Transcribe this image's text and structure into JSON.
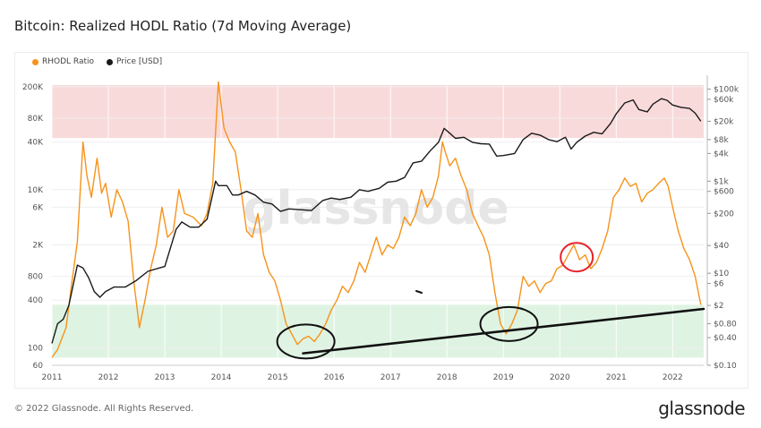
{
  "title": "Bitcoin: Realized HODL Ratio (7d Moving Average)",
  "footer": "© 2022 Glassnode. All Rights Reserved.",
  "brand": "glassnode",
  "watermark": "glassnode",
  "colors": {
    "rhodl": "#f7931a",
    "price": "#1a1a1a",
    "upper_band": "#f9dada",
    "lower_band": "#dff3e3",
    "annotation": "#111111",
    "circle_red": "#e8222a"
  },
  "chart_data": {
    "type": "line",
    "legend": [
      "RHODL Ratio",
      "Price [USD]"
    ],
    "legend_position": "top-left",
    "x_ticks": [
      "2011",
      "2012",
      "2013",
      "2014",
      "2015",
      "2016",
      "2017",
      "2018",
      "2019",
      "2020",
      "2021",
      "2022"
    ],
    "x_range": [
      2011.0,
      2022.55
    ],
    "left_axis": {
      "scale": "log",
      "range": [
        60,
        280000
      ],
      "ticks": [
        "200K",
        "80K",
        "40K",
        "10K",
        "6K",
        "2K",
        "800",
        "400",
        "100",
        "60"
      ],
      "tick_values": [
        200000,
        80000,
        40000,
        10000,
        6000,
        2000,
        800,
        400,
        100,
        60
      ]
    },
    "right_axis": {
      "scale": "log",
      "range": [
        0.1,
        200000
      ],
      "ticks": [
        "$100k",
        "$60k",
        "$20k",
        "$8k",
        "$4k",
        "$1k",
        "$600",
        "$200",
        "$40",
        "$10",
        "$6",
        "$2",
        "$0.80",
        "$0.40",
        "$0.10"
      ],
      "tick_values": [
        100000,
        60000,
        20000,
        8000,
        4000,
        1000,
        600,
        200,
        40,
        10,
        6,
        2,
        0.8,
        0.4,
        0.1
      ]
    },
    "bands": [
      {
        "axis": "left",
        "from": 45000,
        "to": 210000
      },
      {
        "axis": "left",
        "from": 75,
        "to": 350
      }
    ],
    "series": [
      {
        "name": "RHODL Ratio",
        "axis": "left",
        "points": [
          [
            2011.0,
            75
          ],
          [
            2011.1,
            95
          ],
          [
            2011.25,
            180
          ],
          [
            2011.35,
            650
          ],
          [
            2011.45,
            2200
          ],
          [
            2011.55,
            40000
          ],
          [
            2011.62,
            15000
          ],
          [
            2011.7,
            8000
          ],
          [
            2011.8,
            25000
          ],
          [
            2011.88,
            9000
          ],
          [
            2011.95,
            12000
          ],
          [
            2012.05,
            4500
          ],
          [
            2012.15,
            10000
          ],
          [
            2012.25,
            7000
          ],
          [
            2012.35,
            4000
          ],
          [
            2012.45,
            700
          ],
          [
            2012.55,
            180
          ],
          [
            2012.65,
            400
          ],
          [
            2012.75,
            1000
          ],
          [
            2012.85,
            2000
          ],
          [
            2012.95,
            6000
          ],
          [
            2013.05,
            2500
          ],
          [
            2013.15,
            3000
          ],
          [
            2013.25,
            10000
          ],
          [
            2013.35,
            5000
          ],
          [
            2013.5,
            4500
          ],
          [
            2013.65,
            3500
          ],
          [
            2013.75,
            5000
          ],
          [
            2013.85,
            12000
          ],
          [
            2013.95,
            230000
          ],
          [
            2014.05,
            60000
          ],
          [
            2014.15,
            40000
          ],
          [
            2014.25,
            30000
          ],
          [
            2014.35,
            10000
          ],
          [
            2014.45,
            3000
          ],
          [
            2014.55,
            2500
          ],
          [
            2014.65,
            5000
          ],
          [
            2014.75,
            1500
          ],
          [
            2014.85,
            900
          ],
          [
            2014.95,
            700
          ],
          [
            2015.05,
            400
          ],
          [
            2015.15,
            200
          ],
          [
            2015.25,
            150
          ],
          [
            2015.35,
            110
          ],
          [
            2015.45,
            130
          ],
          [
            2015.55,
            140
          ],
          [
            2015.65,
            120
          ],
          [
            2015.75,
            150
          ],
          [
            2015.85,
            200
          ],
          [
            2015.95,
            300
          ],
          [
            2016.05,
            400
          ],
          [
            2016.15,
            600
          ],
          [
            2016.25,
            500
          ],
          [
            2016.35,
            700
          ],
          [
            2016.45,
            1200
          ],
          [
            2016.55,
            900
          ],
          [
            2016.65,
            1500
          ],
          [
            2016.75,
            2500
          ],
          [
            2016.85,
            1500
          ],
          [
            2016.95,
            2000
          ],
          [
            2017.05,
            1800
          ],
          [
            2017.15,
            2500
          ],
          [
            2017.25,
            4500
          ],
          [
            2017.35,
            3500
          ],
          [
            2017.45,
            5000
          ],
          [
            2017.55,
            10000
          ],
          [
            2017.65,
            6000
          ],
          [
            2017.75,
            8000
          ],
          [
            2017.85,
            15000
          ],
          [
            2017.92,
            40000
          ],
          [
            2017.97,
            30000
          ],
          [
            2018.05,
            20000
          ],
          [
            2018.15,
            25000
          ],
          [
            2018.25,
            15000
          ],
          [
            2018.35,
            10000
          ],
          [
            2018.45,
            5000
          ],
          [
            2018.55,
            3500
          ],
          [
            2018.65,
            2500
          ],
          [
            2018.75,
            1500
          ],
          [
            2018.85,
            500
          ],
          [
            2018.95,
            200
          ],
          [
            2019.05,
            150
          ],
          [
            2019.15,
            200
          ],
          [
            2019.25,
            300
          ],
          [
            2019.35,
            800
          ],
          [
            2019.45,
            600
          ],
          [
            2019.55,
            700
          ],
          [
            2019.65,
            500
          ],
          [
            2019.75,
            650
          ],
          [
            2019.85,
            700
          ],
          [
            2019.95,
            1000
          ],
          [
            2020.05,
            1100
          ],
          [
            2020.15,
            1500
          ],
          [
            2020.25,
            2000
          ],
          [
            2020.35,
            1300
          ],
          [
            2020.45,
            1500
          ],
          [
            2020.55,
            1000
          ],
          [
            2020.65,
            1200
          ],
          [
            2020.75,
            1800
          ],
          [
            2020.85,
            3000
          ],
          [
            2020.95,
            8000
          ],
          [
            2021.05,
            10000
          ],
          [
            2021.15,
            14000
          ],
          [
            2021.25,
            11000
          ],
          [
            2021.35,
            12000
          ],
          [
            2021.45,
            7000
          ],
          [
            2021.55,
            9000
          ],
          [
            2021.65,
            10000
          ],
          [
            2021.75,
            12000
          ],
          [
            2021.85,
            14000
          ],
          [
            2021.92,
            11000
          ],
          [
            2022.0,
            6000
          ],
          [
            2022.1,
            3000
          ],
          [
            2022.2,
            1800
          ],
          [
            2022.3,
            1300
          ],
          [
            2022.4,
            800
          ],
          [
            2022.5,
            350
          ]
        ]
      },
      {
        "name": "Price [USD]",
        "axis": "right",
        "points": [
          [
            2011.0,
            0.3
          ],
          [
            2011.1,
            0.8
          ],
          [
            2011.2,
            1
          ],
          [
            2011.3,
            2
          ],
          [
            2011.45,
            15
          ],
          [
            2011.55,
            13
          ],
          [
            2011.65,
            8
          ],
          [
            2011.75,
            4
          ],
          [
            2011.85,
            3
          ],
          [
            2011.95,
            4
          ],
          [
            2012.1,
            5
          ],
          [
            2012.3,
            5
          ],
          [
            2012.5,
            7
          ],
          [
            2012.7,
            11
          ],
          [
            2012.9,
            13
          ],
          [
            2013.0,
            14
          ],
          [
            2013.2,
            90
          ],
          [
            2013.3,
            130
          ],
          [
            2013.45,
            100
          ],
          [
            2013.6,
            100
          ],
          [
            2013.75,
            150
          ],
          [
            2013.9,
            1000
          ],
          [
            2013.95,
            800
          ],
          [
            2014.1,
            800
          ],
          [
            2014.2,
            500
          ],
          [
            2014.3,
            500
          ],
          [
            2014.45,
            600
          ],
          [
            2014.6,
            500
          ],
          [
            2014.75,
            350
          ],
          [
            2014.9,
            320
          ],
          [
            2015.05,
            220
          ],
          [
            2015.2,
            250
          ],
          [
            2015.4,
            240
          ],
          [
            2015.6,
            230
          ],
          [
            2015.8,
            380
          ],
          [
            2015.95,
            430
          ],
          [
            2016.1,
            400
          ],
          [
            2016.3,
            450
          ],
          [
            2016.45,
            650
          ],
          [
            2016.6,
            600
          ],
          [
            2016.8,
            700
          ],
          [
            2016.95,
            950
          ],
          [
            2017.1,
            1000
          ],
          [
            2017.25,
            1200
          ],
          [
            2017.4,
            2500
          ],
          [
            2017.55,
            2700
          ],
          [
            2017.7,
            4500
          ],
          [
            2017.85,
            7000
          ],
          [
            2017.95,
            14000
          ],
          [
            2018.05,
            11000
          ],
          [
            2018.15,
            8500
          ],
          [
            2018.3,
            9000
          ],
          [
            2018.45,
            7000
          ],
          [
            2018.6,
            6500
          ],
          [
            2018.75,
            6400
          ],
          [
            2018.88,
            3500
          ],
          [
            2019.0,
            3600
          ],
          [
            2019.2,
            4000
          ],
          [
            2019.35,
            8000
          ],
          [
            2019.5,
            11000
          ],
          [
            2019.65,
            10000
          ],
          [
            2019.8,
            8000
          ],
          [
            2019.95,
            7200
          ],
          [
            2020.1,
            9000
          ],
          [
            2020.2,
            5000
          ],
          [
            2020.3,
            7000
          ],
          [
            2020.45,
            9500
          ],
          [
            2020.6,
            11500
          ],
          [
            2020.75,
            10700
          ],
          [
            2020.9,
            18000
          ],
          [
            2021.0,
            29000
          ],
          [
            2021.15,
            50000
          ],
          [
            2021.3,
            58000
          ],
          [
            2021.4,
            36000
          ],
          [
            2021.55,
            32000
          ],
          [
            2021.65,
            47000
          ],
          [
            2021.8,
            62000
          ],
          [
            2021.9,
            57000
          ],
          [
            2022.0,
            45000
          ],
          [
            2022.15,
            40000
          ],
          [
            2022.3,
            38000
          ],
          [
            2022.4,
            30000
          ],
          [
            2022.5,
            20000
          ]
        ]
      }
    ],
    "annotations": [
      {
        "type": "trendline",
        "from": [
          2015.45,
          85
        ],
        "to": [
          2022.55,
          310
        ]
      },
      {
        "type": "circle",
        "color": "black",
        "center": [
          2015.5,
          120
        ]
      },
      {
        "type": "circle",
        "color": "black",
        "center": [
          2019.1,
          200
        ]
      },
      {
        "type": "circle",
        "color": "red",
        "center": [
          2020.3,
          1400
        ]
      }
    ]
  }
}
